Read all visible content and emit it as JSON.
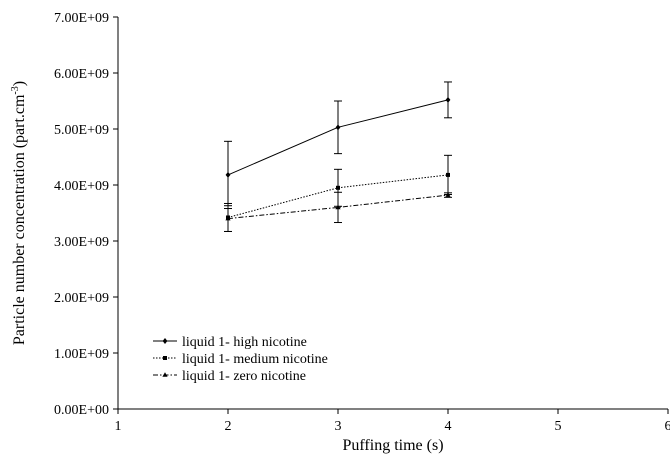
{
  "chart_data": {
    "type": "line",
    "title": "",
    "xlabel": "Puffing time (s)",
    "ylabel_main": "Particle number concentration (part.cm",
    "ylabel_sup": "-3",
    "ylabel_close": ")",
    "xlim": [
      1,
      6
    ],
    "ylim": [
      0,
      7000000000
    ],
    "x_ticks": [
      1,
      2,
      3,
      4,
      5,
      6
    ],
    "y_ticks": [
      0,
      1000000000,
      2000000000,
      3000000000,
      4000000000,
      5000000000,
      6000000000,
      7000000000
    ],
    "x_tick_labels": [
      "1",
      "2",
      "3",
      "4",
      "5",
      "6"
    ],
    "y_tick_labels": [
      "0.00E+00",
      "1.00E+09",
      "2.00E+09",
      "3.00E+09",
      "4.00E+09",
      "5.00E+09",
      "6.00E+09",
      "7.00E+09"
    ],
    "grid": false,
    "legend_position": "bottom-left",
    "series": [
      {
        "name": "liquid 1- high nicotine",
        "line_style": "solid",
        "marker": "diamond",
        "x": [
          2,
          3,
          4
        ],
        "y": [
          4180000000,
          5030000000,
          5520000000
        ],
        "error": [
          600000000,
          470000000,
          320000000
        ]
      },
      {
        "name": "liquid 1- medium nicotine",
        "line_style": "dotted",
        "marker": "square",
        "x": [
          2,
          3,
          4
        ],
        "y": [
          3420000000,
          3950000000,
          4180000000
        ],
        "error": [
          250000000,
          330000000,
          350000000
        ]
      },
      {
        "name": "liquid 1- zero nicotine",
        "line_style": "dashdot",
        "marker": "triangle",
        "x": [
          2,
          3,
          4
        ],
        "y": [
          3400000000,
          3600000000,
          3820000000
        ],
        "error": [
          230000000,
          270000000,
          40000000
        ]
      }
    ]
  }
}
